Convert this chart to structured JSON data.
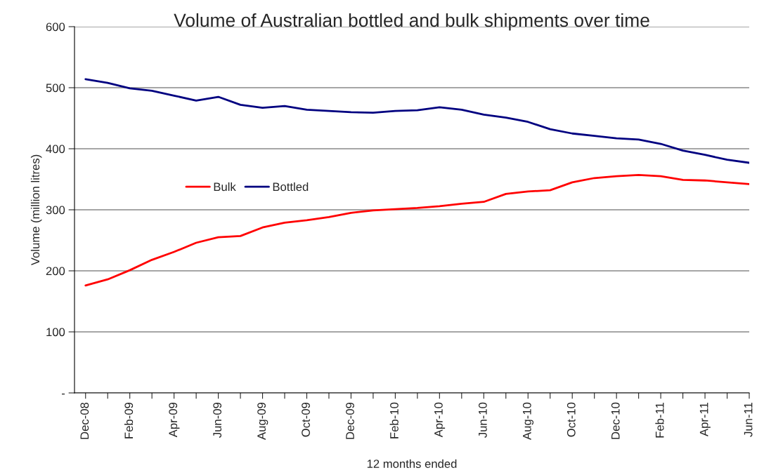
{
  "chart_data": {
    "type": "line",
    "title": "Volume of Australian bottled and bulk shipments over time",
    "xlabel": "12 months ended",
    "ylabel": "Volume (million litres)",
    "categories": [
      "Dec-08",
      null,
      "Feb-09",
      null,
      "Apr-09",
      null,
      "Jun-09",
      null,
      "Aug-09",
      null,
      "Oct-09",
      null,
      "Dec-09",
      null,
      "Feb-10",
      null,
      "Apr-10",
      null,
      "Jun-10",
      null,
      "Aug-10",
      null,
      "Oct-10",
      null,
      "Dec-10",
      null,
      "Feb-11",
      null,
      "Apr-11",
      null,
      "Jun-11"
    ],
    "series": [
      {
        "name": "Bulk",
        "color": "#ff0000",
        "values": [
          176,
          186,
          201,
          218,
          231,
          246,
          255,
          257,
          271,
          279,
          283,
          288,
          295,
          299,
          301,
          303,
          306,
          310,
          313,
          326,
          330,
          332,
          345,
          352,
          355,
          357,
          355,
          349,
          348,
          345,
          342
        ]
      },
      {
        "name": "Bottled",
        "color": "#000080",
        "values": [
          514,
          508,
          499,
          495,
          487,
          479,
          485,
          472,
          467,
          470,
          464,
          462,
          460,
          459,
          462,
          463,
          468,
          464,
          456,
          451,
          444,
          432,
          425,
          421,
          417,
          415,
          408,
          397,
          390,
          382,
          377
        ]
      }
    ],
    "ylim": [
      0,
      600
    ],
    "yticks": [
      {
        "value": 0,
        "label": "-"
      },
      100,
      200,
      300,
      400,
      500,
      600
    ],
    "grid": "y",
    "legend": "center left",
    "marker": "none",
    "line_style": "solid"
  }
}
